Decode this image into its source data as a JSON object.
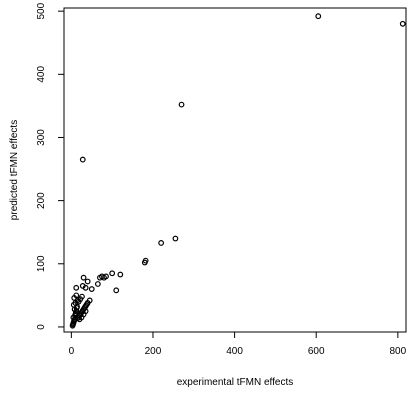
{
  "chart_data": {
    "type": "scatter",
    "title": "",
    "xlabel": "experimental tFMN effects",
    "ylabel": "predicted tFMN effects",
    "xlim": [
      -18,
      820
    ],
    "ylim": [
      -8,
      505
    ],
    "xticks": [
      0,
      200,
      400,
      600,
      800
    ],
    "yticks": [
      0,
      100,
      200,
      300,
      400,
      500
    ],
    "grid": false,
    "legend": "none",
    "marker": "open-circle",
    "colors": {
      "marker": "#000000",
      "axis": "#000000",
      "background": "#ffffff"
    },
    "points": [
      {
        "x": 3,
        "y": 2
      },
      {
        "x": 4,
        "y": 4
      },
      {
        "x": 5,
        "y": 6
      },
      {
        "x": 6,
        "y": 8
      },
      {
        "x": 7,
        "y": 10
      },
      {
        "x": 8,
        "y": 12
      },
      {
        "x": 5,
        "y": 15
      },
      {
        "x": 9,
        "y": 18
      },
      {
        "x": 10,
        "y": 20
      },
      {
        "x": 11,
        "y": 22
      },
      {
        "x": 12,
        "y": 25
      },
      {
        "x": 8,
        "y": 28
      },
      {
        "x": 13,
        "y": 30
      },
      {
        "x": 14,
        "y": 32
      },
      {
        "x": 6,
        "y": 35
      },
      {
        "x": 10,
        "y": 38
      },
      {
        "x": 15,
        "y": 42
      },
      {
        "x": 7,
        "y": 46
      },
      {
        "x": 12,
        "y": 50
      },
      {
        "x": 16,
        "y": 14
      },
      {
        "x": 18,
        "y": 16
      },
      {
        "x": 20,
        "y": 18
      },
      {
        "x": 22,
        "y": 20
      },
      {
        "x": 24,
        "y": 22
      },
      {
        "x": 26,
        "y": 24
      },
      {
        "x": 28,
        "y": 26
      },
      {
        "x": 30,
        "y": 28
      },
      {
        "x": 32,
        "y": 30
      },
      {
        "x": 34,
        "y": 32
      },
      {
        "x": 36,
        "y": 34
      },
      {
        "x": 38,
        "y": 36
      },
      {
        "x": 40,
        "y": 38
      },
      {
        "x": 20,
        "y": 12
      },
      {
        "x": 25,
        "y": 15
      },
      {
        "x": 30,
        "y": 20
      },
      {
        "x": 35,
        "y": 25
      },
      {
        "x": 18,
        "y": 40
      },
      {
        "x": 22,
        "y": 44
      },
      {
        "x": 26,
        "y": 48
      },
      {
        "x": 45,
        "y": 42
      },
      {
        "x": 12,
        "y": 62
      },
      {
        "x": 28,
        "y": 65
      },
      {
        "x": 35,
        "y": 62
      },
      {
        "x": 40,
        "y": 72
      },
      {
        "x": 30,
        "y": 78
      },
      {
        "x": 50,
        "y": 60
      },
      {
        "x": 65,
        "y": 68
      },
      {
        "x": 70,
        "y": 78
      },
      {
        "x": 75,
        "y": 80
      },
      {
        "x": 80,
        "y": 78
      },
      {
        "x": 85,
        "y": 80
      },
      {
        "x": 100,
        "y": 85
      },
      {
        "x": 120,
        "y": 83
      },
      {
        "x": 110,
        "y": 58
      },
      {
        "x": 180,
        "y": 102
      },
      {
        "x": 182,
        "y": 105
      },
      {
        "x": 220,
        "y": 133
      },
      {
        "x": 255,
        "y": 140
      },
      {
        "x": 28,
        "y": 265
      },
      {
        "x": 270,
        "y": 352
      },
      {
        "x": 605,
        "y": 492
      },
      {
        "x": 812,
        "y": 480
      }
    ]
  }
}
